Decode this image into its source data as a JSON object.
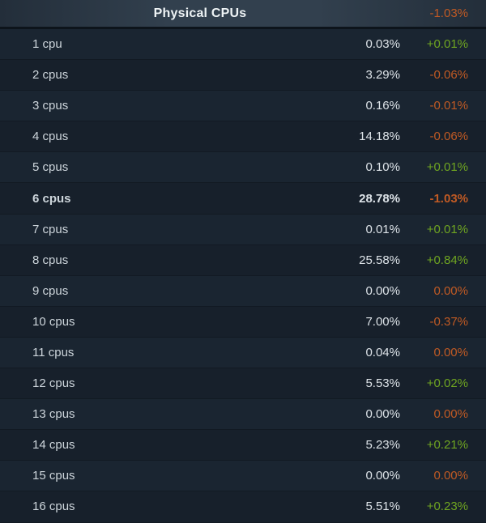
{
  "colors": {
    "positive": "#6fa521",
    "negative": "#c05a24",
    "row_text": "#cdd5db",
    "value_text": "#dde3e8",
    "header_text": "#eef3f5"
  },
  "header": {
    "title": "Physical CPUs",
    "change": "-1.03%"
  },
  "rows": [
    {
      "label": "1 cpu",
      "value": "0.03%",
      "change": "+0.01%",
      "highlight": false
    },
    {
      "label": "2 cpus",
      "value": "3.29%",
      "change": "-0.06%",
      "highlight": false
    },
    {
      "label": "3 cpus",
      "value": "0.16%",
      "change": "-0.01%",
      "highlight": false
    },
    {
      "label": "4 cpus",
      "value": "14.18%",
      "change": "-0.06%",
      "highlight": false
    },
    {
      "label": "5 cpus",
      "value": "0.10%",
      "change": "+0.01%",
      "highlight": false
    },
    {
      "label": "6 cpus",
      "value": "28.78%",
      "change": "-1.03%",
      "highlight": true
    },
    {
      "label": "7 cpus",
      "value": "0.01%",
      "change": "+0.01%",
      "highlight": false
    },
    {
      "label": "8 cpus",
      "value": "25.58%",
      "change": "+0.84%",
      "highlight": false
    },
    {
      "label": "9 cpus",
      "value": "0.00%",
      "change": "0.00%",
      "highlight": false
    },
    {
      "label": "10 cpus",
      "value": "7.00%",
      "change": "-0.37%",
      "highlight": false
    },
    {
      "label": "11 cpus",
      "value": "0.04%",
      "change": "0.00%",
      "highlight": false
    },
    {
      "label": "12 cpus",
      "value": "5.53%",
      "change": "+0.02%",
      "highlight": false
    },
    {
      "label": "13 cpus",
      "value": "0.00%",
      "change": "0.00%",
      "highlight": false
    },
    {
      "label": "14 cpus",
      "value": "5.23%",
      "change": "+0.21%",
      "highlight": false
    },
    {
      "label": "15 cpus",
      "value": "0.00%",
      "change": "0.00%",
      "highlight": false
    },
    {
      "label": "16 cpus",
      "value": "5.51%",
      "change": "+0.23%",
      "highlight": false
    }
  ]
}
